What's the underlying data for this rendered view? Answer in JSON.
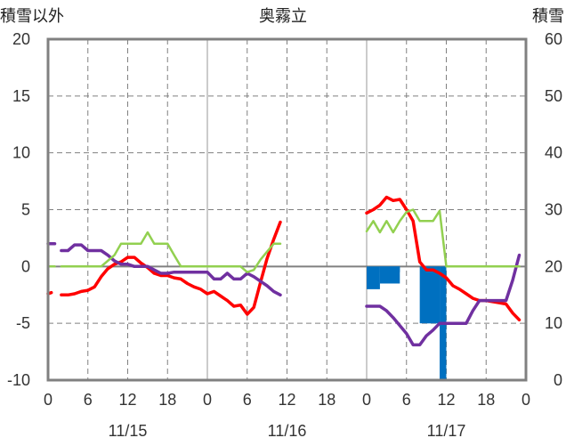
{
  "chart_data": {
    "type": "line",
    "title": "奥霧立",
    "left_axis_label": "積雪以外",
    "right_axis_label": "積雪",
    "left_ylim": [
      -10,
      20
    ],
    "left_yticks": [
      20,
      15,
      10,
      5,
      0,
      -5,
      -10
    ],
    "right_ylim": [
      0,
      60
    ],
    "right_yticks": [
      60,
      50,
      40,
      30,
      20,
      10,
      0
    ],
    "x_hour_range": [
      0,
      72
    ],
    "x_tick_labels": [
      "0",
      "6",
      "12",
      "18",
      "0",
      "6",
      "12",
      "18",
      "0",
      "6",
      "12",
      "18",
      "0"
    ],
    "date_labels": [
      "11/15",
      "11/16",
      "11/17"
    ],
    "grid": true,
    "colors": {
      "red": "#ff0000",
      "purple": "#7030a0",
      "green": "#92d050",
      "blue": "#0070c0",
      "zero_line": "#808080",
      "frame": "#808080",
      "day_line": "#999999",
      "dash_line": "#808080"
    },
    "series": [
      {
        "color": "red",
        "segments": [
          [
            [
              0,
              -2.4
            ],
            [
              0.5,
              -2.3
            ]
          ],
          [
            [
              2,
              -2.5
            ],
            [
              3,
              -2.5
            ],
            [
              4,
              -2.4
            ],
            [
              5,
              -2.2
            ],
            [
              6,
              -2.1
            ],
            [
              7,
              -1.8
            ],
            [
              8,
              -0.9
            ],
            [
              9,
              -0.2
            ],
            [
              10,
              0.2
            ],
            [
              11,
              0.4
            ],
            [
              12,
              0.8
            ],
            [
              13,
              0.8
            ],
            [
              14,
              0.3
            ],
            [
              15,
              -0.1
            ],
            [
              16,
              -0.6
            ],
            [
              17,
              -0.8
            ],
            [
              18,
              -0.8
            ],
            [
              19,
              -1.0
            ],
            [
              20,
              -1.1
            ],
            [
              21,
              -1.5
            ],
            [
              22,
              -1.8
            ],
            [
              23,
              -2.0
            ],
            [
              24,
              -2.4
            ],
            [
              25,
              -2.2
            ],
            [
              26,
              -2.6
            ],
            [
              27,
              -3.0
            ],
            [
              28,
              -3.5
            ],
            [
              29,
              -3.4
            ],
            [
              30,
              -4.2
            ],
            [
              31,
              -3.6
            ],
            [
              32,
              -1.4
            ],
            [
              33,
              0.7
            ],
            [
              34,
              2.4
            ],
            [
              35,
              3.9
            ]
          ],
          [
            [
              48,
              4.7
            ],
            [
              49,
              5.0
            ],
            [
              50,
              5.4
            ],
            [
              51,
              6.1
            ],
            [
              52,
              5.8
            ],
            [
              53,
              5.9
            ],
            [
              54,
              5.0
            ],
            [
              55,
              4.0
            ],
            [
              56,
              0.4
            ],
            [
              57,
              -0.3
            ],
            [
              58,
              -0.3
            ],
            [
              59,
              -0.6
            ],
            [
              60,
              -1.0
            ],
            [
              61,
              -1.7
            ],
            [
              62,
              -2.0
            ],
            [
              63,
              -2.4
            ],
            [
              64,
              -2.8
            ],
            [
              65,
              -3.0
            ],
            [
              66,
              -3.0
            ],
            [
              67,
              -3.1
            ],
            [
              68,
              -3.2
            ],
            [
              69,
              -3.3
            ],
            [
              70,
              -4.1
            ],
            [
              71,
              -4.7
            ]
          ]
        ]
      },
      {
        "color": "purple",
        "segments": [
          [
            [
              0,
              2.0
            ],
            [
              1,
              2.0
            ]
          ],
          [
            [
              2,
              1.4
            ],
            [
              3,
              1.4
            ],
            [
              4,
              1.9
            ],
            [
              5,
              1.9
            ],
            [
              6,
              1.4
            ],
            [
              7,
              1.4
            ],
            [
              8,
              1.4
            ],
            [
              9,
              1.0
            ],
            [
              10,
              0.5
            ],
            [
              11,
              0.2
            ],
            [
              12,
              0.2
            ],
            [
              13,
              0.0
            ],
            [
              14,
              0.0
            ],
            [
              15,
              0.0
            ],
            [
              16,
              -0.3
            ],
            [
              17,
              -0.6
            ],
            [
              18,
              -0.6
            ],
            [
              19,
              -0.5
            ],
            [
              20,
              -0.5
            ],
            [
              21,
              -0.5
            ],
            [
              22,
              -0.5
            ],
            [
              23,
              -0.5
            ],
            [
              24,
              -0.5
            ],
            [
              25,
              -1.1
            ],
            [
              26,
              -1.1
            ],
            [
              27,
              -0.6
            ],
            [
              28,
              -1.1
            ],
            [
              29,
              -1.1
            ],
            [
              30,
              -0.6
            ],
            [
              31,
              -0.9
            ],
            [
              32,
              -1.3
            ],
            [
              33,
              -1.7
            ],
            [
              34,
              -2.2
            ],
            [
              35,
              -2.5
            ]
          ],
          [
            [
              48,
              -3.5
            ],
            [
              49,
              -3.5
            ],
            [
              50,
              -3.5
            ],
            [
              51,
              -3.9
            ],
            [
              52,
              -4.5
            ],
            [
              53,
              -5.2
            ],
            [
              54,
              -5.9
            ],
            [
              55,
              -6.9
            ],
            [
              56,
              -6.9
            ],
            [
              57,
              -6.1
            ],
            [
              58,
              -5.6
            ],
            [
              59,
              -5.0
            ],
            [
              60,
              -5.0
            ],
            [
              61,
              -5.0
            ],
            [
              62,
              -5.0
            ],
            [
              63,
              -5.0
            ],
            [
              64,
              -3.9
            ],
            [
              65,
              -3.0
            ],
            [
              66,
              -3.0
            ],
            [
              67,
              -3.0
            ],
            [
              68,
              -3.0
            ],
            [
              69,
              -3.0
            ],
            [
              70,
              -1.2
            ],
            [
              71,
              1.0
            ]
          ]
        ]
      },
      {
        "color": "green",
        "segments": [
          [
            [
              0,
              0
            ],
            [
              1,
              0
            ]
          ],
          [
            [
              2,
              0
            ],
            [
              3,
              0
            ],
            [
              4,
              0
            ],
            [
              5,
              0
            ],
            [
              6,
              0
            ],
            [
              7,
              0
            ],
            [
              8,
              0
            ],
            [
              9,
              0.5
            ],
            [
              10,
              1.0
            ],
            [
              11,
              2.0
            ],
            [
              12,
              2.0
            ],
            [
              13,
              2.0
            ],
            [
              14,
              2.0
            ],
            [
              15,
              3.0
            ],
            [
              16,
              2.0
            ],
            [
              17,
              2.0
            ],
            [
              18,
              2.0
            ],
            [
              19,
              1.0
            ],
            [
              20,
              0
            ],
            [
              21,
              0
            ],
            [
              22,
              0
            ],
            [
              23,
              0
            ],
            [
              24,
              0
            ],
            [
              25,
              0
            ],
            [
              26,
              0
            ],
            [
              27,
              0
            ],
            [
              28,
              0
            ],
            [
              29,
              0
            ],
            [
              30,
              -0.5
            ],
            [
              31,
              -0.3
            ],
            [
              32,
              0.6
            ],
            [
              33,
              1.3
            ],
            [
              34,
              2.0
            ],
            [
              35,
              2.0
            ]
          ],
          [
            [
              48,
              3.1
            ],
            [
              49,
              4.0
            ],
            [
              50,
              3.0
            ],
            [
              51,
              4.0
            ],
            [
              52,
              3.0
            ],
            [
              53,
              4.0
            ],
            [
              54,
              4.8
            ],
            [
              55,
              5.0
            ],
            [
              56,
              4.0
            ],
            [
              57,
              4.0
            ],
            [
              58,
              4.0
            ],
            [
              59,
              4.9
            ],
            [
              60,
              0
            ],
            [
              61,
              0
            ],
            [
              62,
              0
            ],
            [
              63,
              0
            ],
            [
              64,
              0
            ],
            [
              65,
              0
            ],
            [
              66,
              0
            ],
            [
              67,
              0
            ],
            [
              68,
              0
            ],
            [
              69,
              0
            ],
            [
              70,
              0
            ],
            [
              71,
              0
            ]
          ]
        ]
      }
    ],
    "snow_bars": [
      {
        "start": 48,
        "end": 50,
        "value": 16
      },
      {
        "start": 50,
        "end": 53,
        "value": 19
      },
      {
        "start": 57,
        "end": 59,
        "value": 10
      },
      {
        "start": 59,
        "end": 60,
        "value": 0
      }
    ],
    "snow_bars_group2": [
      {
        "start": 50,
        "end": 53,
        "value": 17
      },
      {
        "start": 56,
        "end": 59,
        "value": 10
      }
    ]
  }
}
